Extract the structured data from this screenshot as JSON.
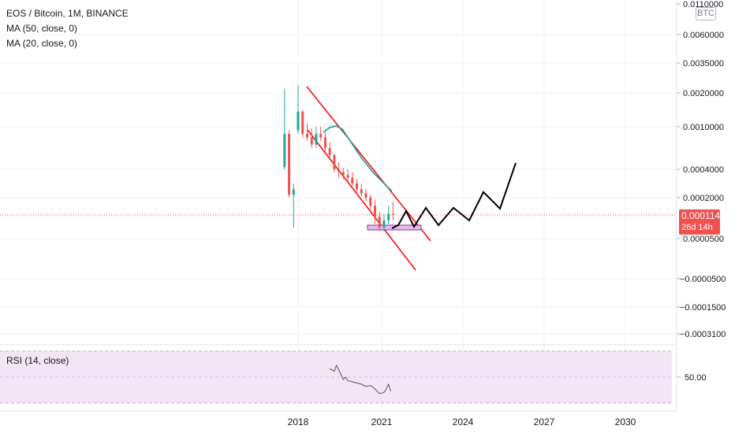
{
  "legend": {
    "title": "EOS / Bitcoin, 1M, BINANCE",
    "ma50": "MA (50, close, 0)",
    "ma20": "MA (20, close, 0)",
    "rsi": "RSI (14, close)"
  },
  "currency_label": "BTC",
  "last_price": {
    "value": "0.0001148",
    "countdown": "26d 14h"
  },
  "colors": {
    "up": "#26a69a",
    "down": "#ef5350",
    "ma": "#26a69a",
    "channel": "#ff0000",
    "projection": "#000000",
    "support_zone": "#9c27b0",
    "rsi_line": "#7e57c2",
    "rsi_band": "#f3e5f5"
  },
  "chart_data": [
    {
      "type": "line",
      "title": "EOS / Bitcoin, 1M, BINANCE",
      "xlabel": "",
      "ylabel": "",
      "x_ticks": [
        "2018",
        "2021",
        "2024",
        "2027",
        "2030"
      ],
      "y_ticks": [
        "0.0110000",
        "0.0060000",
        "0.0035000",
        "0.0020000",
        "0.0010000",
        "0.0004000",
        "0.0002000",
        "0.0001148",
        "0.0000500",
        "−0.0000500",
        "−0.0001500",
        "−0.0003100"
      ],
      "series": [
        {
          "kind": "candlestick",
          "x": [
            "2017-07",
            "2017-09",
            "2017-11",
            "2018-01",
            "2018-03",
            "2018-05",
            "2018-07",
            "2018-09",
            "2018-11",
            "2019-01",
            "2019-03",
            "2019-05",
            "2019-07",
            "2019-09",
            "2019-11",
            "2020-01",
            "2020-03",
            "2020-05",
            "2020-07",
            "2020-09",
            "2020-11",
            "2021-01",
            "2021-03",
            "2021-05",
            "2021-07"
          ],
          "open": [
            0.00043,
            0.0009,
            0.00022,
            0.00095,
            0.00145,
            0.0009,
            0.00085,
            0.00075,
            0.0009,
            0.00085,
            0.0007,
            0.0006,
            0.0004,
            0.00038,
            0.00036,
            0.00034,
            0.0003,
            0.00026,
            0.00023,
            0.0002,
            0.00016,
            0.00011,
            8e-05,
            0.0001,
            0.00012
          ],
          "close": [
            0.0009,
            0.00022,
            0.00026,
            0.00145,
            0.0009,
            0.00085,
            0.00075,
            0.0009,
            0.00085,
            0.0007,
            0.0006,
            0.0004,
            0.00038,
            0.00036,
            0.00034,
            0.0003,
            0.00026,
            0.00023,
            0.0002,
            0.00016,
            0.00011,
            8e-05,
            0.0001,
            0.00012,
            0.0001148
          ],
          "high": [
            0.0021,
            0.00095,
            0.0003,
            0.00225,
            0.0015,
            0.0011,
            0.00098,
            0.001,
            0.001,
            0.00092,
            0.00078,
            0.00062,
            0.0005,
            0.00042,
            0.0004,
            0.00038,
            0.00033,
            0.0003,
            0.00026,
            0.00022,
            0.00019,
            0.00013,
            0.00012,
            0.00016,
            0.00018
          ],
          "low": [
            0.0004,
            0.0002,
            8e-05,
            0.0009,
            0.00085,
            0.0008,
            0.0007,
            0.0007,
            0.0008,
            0.00065,
            0.00055,
            0.00038,
            0.00034,
            0.00033,
            0.00031,
            0.00028,
            0.00024,
            0.00021,
            0.00018,
            0.00014,
            9e-05,
            7e-05,
            7e-05,
            9e-05,
            0.0001
          ]
        }
      ],
      "rsi": {
        "title": "RSI (14, close)",
        "level_label": "50.00",
        "x": [
          "2019-03",
          "2019-05",
          "2019-06",
          "2019-08",
          "2019-09",
          "2019-10",
          "2019-11",
          "2020-01",
          "2020-03",
          "2020-05",
          "2020-07",
          "2020-09",
          "2020-11",
          "2021-01",
          "2021-03",
          "2021-04",
          "2021-05",
          "2021-06"
        ],
        "values": [
          57,
          55,
          60,
          52,
          48,
          50,
          47,
          46,
          45,
          44,
          42,
          43,
          40,
          36,
          37,
          40,
          44,
          38
        ]
      }
    }
  ]
}
